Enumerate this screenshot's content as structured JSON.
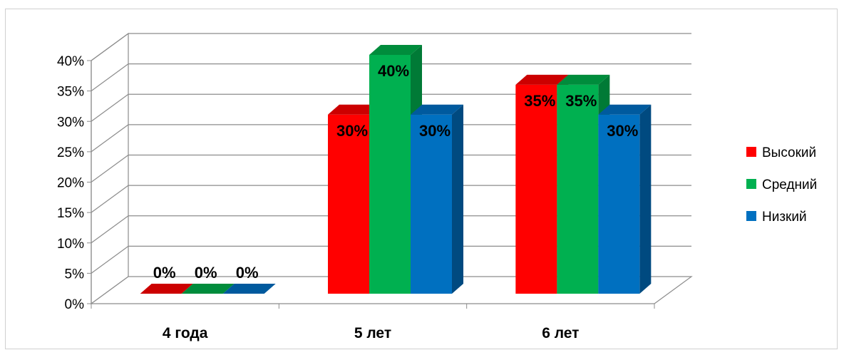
{
  "chart_data": {
    "type": "bar",
    "categories": [
      "4 года",
      "5 лет",
      "6 лет"
    ],
    "series": [
      {
        "name": "Высокий",
        "values": [
          0,
          30,
          35
        ],
        "labels": [
          "0%",
          "30%",
          "35%"
        ],
        "color": "#ff0000",
        "side": "#c00000",
        "top": "#cc0000"
      },
      {
        "name": "Средний",
        "values": [
          0,
          40,
          35
        ],
        "labels": [
          "0%",
          "40%",
          "35%"
        ],
        "color": "#00b050",
        "side": "#007a36",
        "top": "#008c3c"
      },
      {
        "name": "Низкий",
        "values": [
          0,
          30,
          30
        ],
        "labels": [
          "0%",
          "30%",
          "30%"
        ],
        "color": "#0070c0",
        "side": "#004a80",
        "top": "#005a9e"
      }
    ],
    "yticks": [
      "0%",
      "5%",
      "10%",
      "15%",
      "20%",
      "25%",
      "30%",
      "35%",
      "40%"
    ],
    "ylim": [
      0,
      40
    ],
    "grid": true,
    "legend": "right",
    "style": "3d-clustered-column"
  }
}
